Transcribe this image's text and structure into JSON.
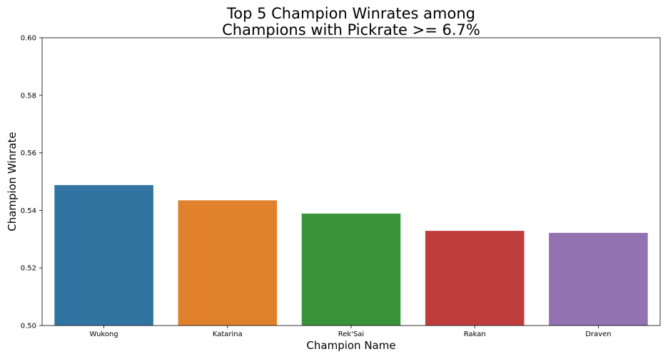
{
  "chart_data": {
    "type": "bar",
    "title": [
      "Top 5 Champion Winrates among",
      "Champions with Pickrate >= 6.7%"
    ],
    "xlabel": "Champion Name",
    "ylabel": "Champion Winrate",
    "categories": [
      "Wukong",
      "Katarina",
      "Rek'Sai",
      "Rakan",
      "Draven"
    ],
    "values": [
      0.5488,
      0.5435,
      0.5389,
      0.5329,
      0.5322
    ],
    "colors": [
      "#3274a1",
      "#e1812c",
      "#3a923a",
      "#c03d3e",
      "#9372b2"
    ],
    "ylim": [
      0.5,
      0.6
    ],
    "yticks": [
      "0.50",
      "0.52",
      "0.54",
      "0.56",
      "0.58",
      "0.60"
    ],
    "grid": false,
    "legend": "none"
  }
}
